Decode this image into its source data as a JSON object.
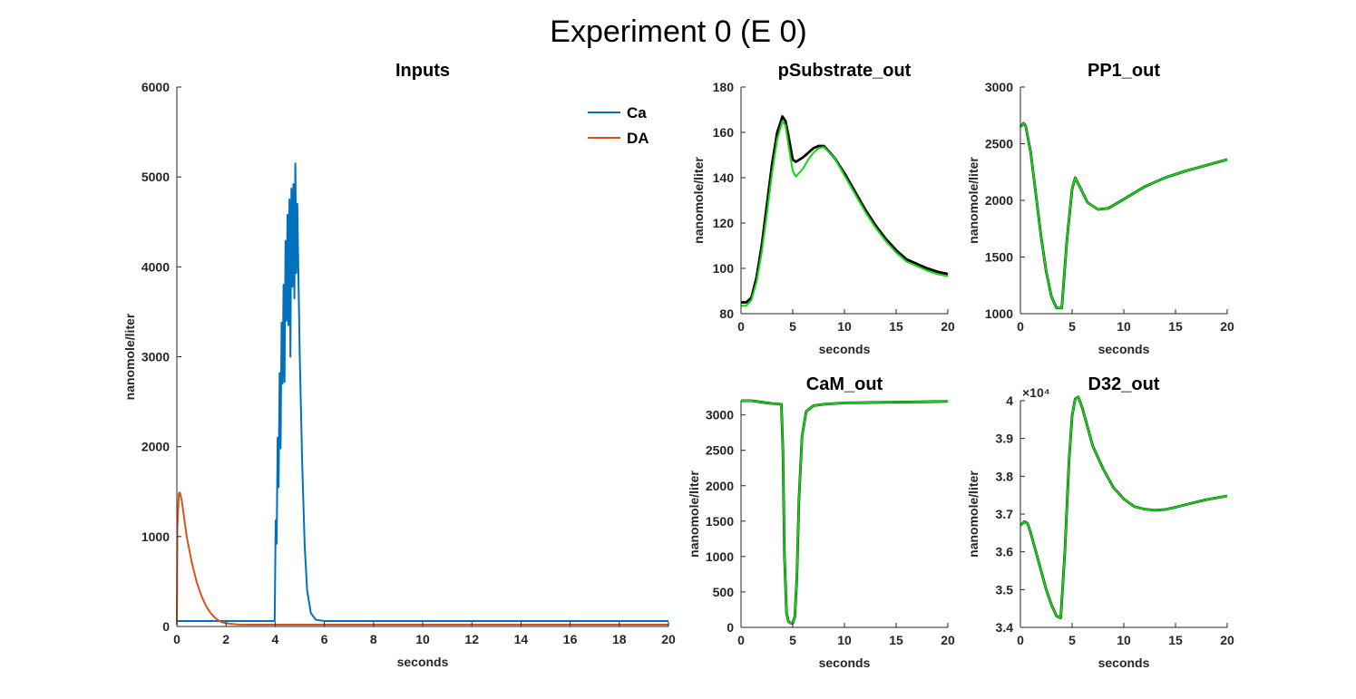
{
  "figure_title": "Experiment 0  (E 0)",
  "chart_data": [
    {
      "id": "inputs",
      "type": "line",
      "title": "Inputs",
      "xlabel": "seconds",
      "ylabel": "nanomole/liter",
      "xlim": [
        0,
        20
      ],
      "ylim": [
        0,
        6000
      ],
      "xticks": [
        0,
        2,
        4,
        6,
        8,
        10,
        12,
        14,
        16,
        18,
        20
      ],
      "yticks": [
        0,
        1000,
        2000,
        3000,
        4000,
        5000,
        6000
      ],
      "legend_position": "top-right",
      "series": [
        {
          "name": "Ca",
          "color": "#0072BD",
          "x": [
            0,
            3.98,
            4.02,
            4.06,
            4.1,
            4.14,
            4.18,
            4.22,
            4.26,
            4.3,
            4.34,
            4.38,
            4.42,
            4.46,
            4.5,
            4.54,
            4.58,
            4.62,
            4.66,
            4.7,
            4.74,
            4.78,
            4.82,
            4.86,
            4.9,
            4.94,
            5.0,
            5.1,
            5.2,
            5.3,
            5.45,
            5.65,
            6.0,
            20
          ],
          "y": [
            60,
            60,
            1180,
            920,
            2100,
            1550,
            2820,
            1980,
            3380,
            2700,
            3800,
            2720,
            4290,
            3400,
            4580,
            3350,
            4750,
            3000,
            4870,
            3780,
            4920,
            3650,
            5150,
            3930,
            4700,
            4000,
            3000,
            1800,
            900,
            400,
            150,
            75,
            60,
            60
          ]
        },
        {
          "name": "DA",
          "color": "#D95319",
          "x": [
            0,
            0.02,
            0.08,
            0.12,
            0.2,
            0.3,
            0.4,
            0.6,
            0.8,
            1.0,
            1.2,
            1.4,
            1.6,
            1.8,
            2.0,
            2.5,
            3,
            4,
            20
          ],
          "y": [
            20,
            1100,
            1480,
            1490,
            1400,
            1200,
            1000,
            720,
            500,
            340,
            220,
            140,
            85,
            50,
            35,
            22,
            20,
            20,
            20
          ]
        }
      ]
    },
    {
      "id": "psubstrate",
      "type": "line",
      "title": "pSubstrate_out",
      "xlabel": "seconds",
      "ylabel": "nanomole/liter",
      "xlim": [
        0,
        20
      ],
      "ylim": [
        80,
        180
      ],
      "xticks": [
        0,
        5,
        10,
        15,
        20
      ],
      "yticks": [
        80,
        100,
        120,
        140,
        160,
        180
      ],
      "series": [
        {
          "color": "#000000",
          "x": [
            0,
            0.5,
            1,
            1.5,
            2,
            2.5,
            3,
            3.5,
            4,
            4.3,
            4.6,
            5,
            5.3,
            6,
            6.5,
            7,
            7.5,
            8,
            9,
            10,
            11,
            12,
            13,
            14,
            15,
            16,
            17,
            18,
            19,
            20
          ],
          "y": [
            85,
            85,
            87,
            96,
            110,
            128,
            146,
            160,
            167,
            165,
            158,
            148,
            147,
            149,
            151,
            153,
            154,
            154,
            149,
            142,
            134,
            126,
            119,
            113,
            108,
            104,
            102,
            100,
            98.5,
            97.5
          ]
        },
        {
          "color": "#11D811",
          "x": [
            0,
            0.5,
            1,
            1.5,
            2,
            2.5,
            3,
            3.5,
            4,
            4.3,
            4.6,
            5,
            5.3,
            6,
            6.5,
            7,
            7.5,
            8,
            9,
            10,
            11,
            12,
            13,
            14,
            15,
            16,
            17,
            18,
            19,
            20
          ],
          "y": [
            83.5,
            83.5,
            86,
            94,
            107,
            124,
            142,
            157,
            165,
            163,
            154,
            143,
            140.5,
            144,
            148,
            151,
            153,
            153.5,
            149,
            141,
            133,
            125,
            118,
            112,
            107,
            103,
            101,
            99,
            97.5,
            96.5
          ]
        }
      ]
    },
    {
      "id": "pp1",
      "type": "line",
      "title": "PP1_out",
      "xlabel": "seconds",
      "ylabel": "nanomole/liter",
      "xlim": [
        0,
        20
      ],
      "ylim": [
        1000,
        3000
      ],
      "xticks": [
        0,
        5,
        10,
        15,
        20
      ],
      "yticks": [
        1000,
        1500,
        2000,
        2500,
        3000
      ],
      "series": [
        {
          "color": "#000000",
          "x": [
            0,
            0.3,
            0.5,
            1,
            1.5,
            2,
            2.5,
            3,
            3.5,
            4,
            4.5,
            5,
            5.3,
            5.8,
            6.5,
            7.5,
            8.5,
            10,
            12,
            14,
            16,
            18,
            20
          ],
          "y": [
            2650,
            2680,
            2660,
            2420,
            2050,
            1680,
            1370,
            1150,
            1050,
            1050,
            1650,
            2100,
            2200,
            2110,
            1980,
            1920,
            1930,
            2010,
            2120,
            2200,
            2260,
            2310,
            2360
          ]
        },
        {
          "color": "#11D811",
          "x": [
            0,
            0.3,
            0.5,
            1,
            1.5,
            2,
            2.5,
            3,
            3.5,
            4,
            4.5,
            5,
            5.3,
            5.8,
            6.5,
            7.5,
            8.5,
            10,
            12,
            14,
            16,
            18,
            20
          ],
          "y": [
            2650,
            2680,
            2660,
            2420,
            2050,
            1680,
            1370,
            1150,
            1050,
            1050,
            1650,
            2100,
            2200,
            2110,
            1980,
            1920,
            1930,
            2010,
            2120,
            2200,
            2260,
            2310,
            2360
          ]
        }
      ]
    },
    {
      "id": "cam",
      "type": "line",
      "title": "CaM_out",
      "xlabel": "seconds",
      "ylabel": "nanomole/liter",
      "xlim": [
        0,
        20
      ],
      "ylim": [
        0,
        3200
      ],
      "xticks": [
        0,
        5,
        10,
        15,
        20
      ],
      "yticks": [
        0,
        500,
        1000,
        1500,
        2000,
        2500,
        3000
      ],
      "series": [
        {
          "color": "#000000",
          "x": [
            0,
            1,
            2,
            3,
            3.9,
            4.05,
            4.2,
            4.4,
            4.6,
            4.8,
            5.0,
            5.2,
            5.4,
            5.6,
            5.9,
            6.3,
            7,
            8,
            10,
            15,
            20
          ],
          "y": [
            3200,
            3200,
            3180,
            3160,
            3150,
            2500,
            1000,
            200,
            80,
            60,
            60,
            150,
            700,
            1800,
            2700,
            3050,
            3130,
            3150,
            3170,
            3180,
            3190
          ]
        },
        {
          "color": "#11D811",
          "x": [
            0,
            1,
            2,
            3,
            3.9,
            4.05,
            4.2,
            4.4,
            4.6,
            4.8,
            5.0,
            5.2,
            5.4,
            5.6,
            5.9,
            6.3,
            7,
            8,
            10,
            15,
            20
          ],
          "y": [
            3200,
            3200,
            3180,
            3160,
            3150,
            2500,
            1000,
            200,
            80,
            60,
            60,
            150,
            700,
            1800,
            2700,
            3050,
            3130,
            3150,
            3170,
            3180,
            3190
          ]
        }
      ]
    },
    {
      "id": "d32",
      "type": "line",
      "title": "D32_out",
      "xlabel": "seconds",
      "ylabel": "nanomole/liter",
      "xlim": [
        0,
        20
      ],
      "ylim": [
        34000,
        40000
      ],
      "xticks": [
        0,
        5,
        10,
        15,
        20
      ],
      "yticks": [
        34000,
        35000,
        36000,
        37000,
        38000,
        39000,
        40000
      ],
      "ytick_labels": [
        "3.4",
        "3.5",
        "3.6",
        "3.7",
        "3.8",
        "3.9",
        "4"
      ],
      "y_exponent_label": "×10⁴",
      "series": [
        {
          "color": "#000000",
          "x": [
            0,
            0.4,
            0.7,
            1,
            1.5,
            2,
            2.5,
            3,
            3.5,
            3.9,
            4.3,
            4.7,
            5.0,
            5.3,
            5.6,
            6,
            7,
            8,
            9,
            10,
            11,
            12,
            13,
            14,
            15,
            16,
            18,
            20
          ],
          "y": [
            36700,
            36800,
            36750,
            36500,
            36000,
            35500,
            35000,
            34600,
            34300,
            34250,
            36000,
            38400,
            39600,
            40050,
            40100,
            39800,
            38800,
            38200,
            37700,
            37400,
            37200,
            37130,
            37100,
            37120,
            37180,
            37250,
            37380,
            37480
          ]
        },
        {
          "color": "#11D811",
          "x": [
            0,
            0.4,
            0.7,
            1,
            1.5,
            2,
            2.5,
            3,
            3.5,
            3.9,
            4.3,
            4.7,
            5.0,
            5.3,
            5.6,
            6,
            7,
            8,
            9,
            10,
            11,
            12,
            13,
            14,
            15,
            16,
            18,
            20
          ],
          "y": [
            36700,
            36800,
            36750,
            36500,
            36000,
            35500,
            35000,
            34600,
            34300,
            34250,
            36000,
            38400,
            39600,
            40050,
            40100,
            39800,
            38800,
            38200,
            37700,
            37400,
            37200,
            37130,
            37100,
            37120,
            37180,
            37250,
            37380,
            37480
          ]
        }
      ]
    }
  ]
}
